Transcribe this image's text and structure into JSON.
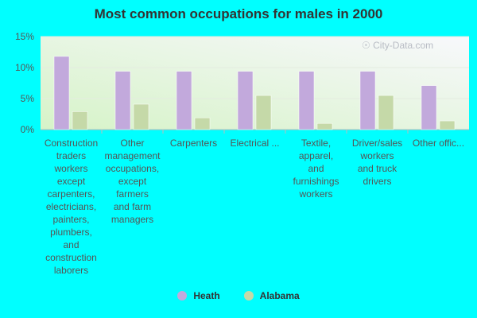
{
  "chart_data": {
    "type": "bar",
    "title": "Most common occupations for males in 2000",
    "categories": [
      "Construction traders workers except carpenters, electricians, painters, plumbers, and construction laborers",
      "Other management occupations, except farmers and farm managers",
      "Carpenters",
      "Electrical ...",
      "Textile, apparel, and furnishings workers",
      "Driver/sales workers and truck drivers",
      "Other offic..."
    ],
    "category_labels_display": [
      "Construction\ntraders\nworkers\nexcept\ncarpenters,\nelectricians,\npainters,\nplumbers,\nand\nconstruction\nlaborers",
      "Other\nmanagement\noccupations,\nexcept\nfarmers\nand farm\nmanagers",
      "Carpenters",
      "Electrical ...",
      "Textile,\napparel,\nand\nfurnishings\nworkers",
      "Driver/sales\nworkers\nand truck\ndrivers",
      "Other offic..."
    ],
    "series": [
      {
        "name": "Heath",
        "color": "#c2a9dc",
        "values": [
          11.8,
          9.4,
          9.4,
          9.4,
          9.4,
          9.4,
          7.1
        ]
      },
      {
        "name": "Alabama",
        "color": "#c5d9a8",
        "values": [
          2.9,
          4.1,
          1.9,
          5.5,
          1.0,
          5.5,
          1.4
        ]
      }
    ],
    "yticks": [
      "0%",
      "5%",
      "10%",
      "15%"
    ],
    "ytick_values": [
      0,
      5,
      10,
      15
    ],
    "ylim": [
      0,
      15
    ],
    "xlabel": "",
    "ylabel": "",
    "legend_position": "bottom",
    "grid": true
  },
  "watermark": "City-Data.com",
  "colors": {
    "background": "#00ffff",
    "plot_bg_top": "#f8f8fc",
    "plot_bg_bottom": "#d6f3c8"
  }
}
